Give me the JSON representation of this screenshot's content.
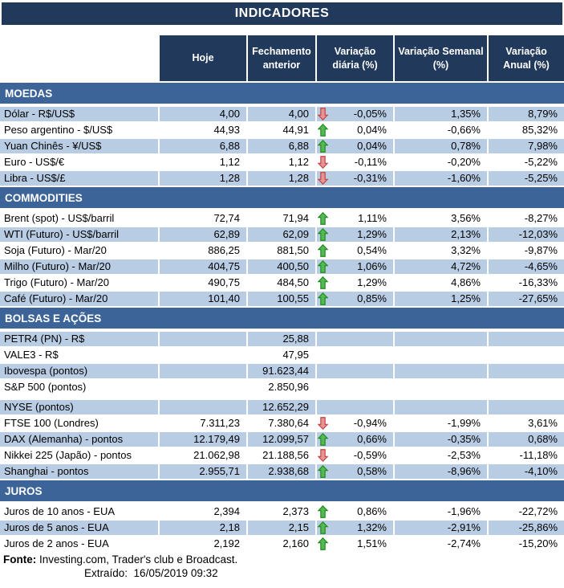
{
  "title": "INDICADORES",
  "colors": {
    "navy": "#21395B",
    "section-blue": "#3C6498",
    "row-blue": "#B8CCE4",
    "arrow-up-fill": "#55B855",
    "arrow-up-stroke": "#1E8A1E",
    "arrow-down-fill": "#E99494",
    "arrow-down-stroke": "#C04242"
  },
  "columns": [
    "Hoje",
    "Fechamento anterior",
    "Variação diária (%)",
    "Variação Semanal (%)",
    "Variação Anual (%)"
  ],
  "sections": [
    {
      "name": "MOEDAS",
      "rows": [
        {
          "label": "Dólar - R$/US$",
          "hoje": "4,00",
          "fechamento": "4,00",
          "arrow": "down",
          "var_diaria": "-0,05%",
          "var_semanal": "1,35%",
          "var_anual": "8,79%",
          "shaded": true
        },
        {
          "label": "Peso argentino - $/US$",
          "hoje": "44,93",
          "fechamento": "44,91",
          "arrow": "up",
          "var_diaria": "0,04%",
          "var_semanal": "-0,66%",
          "var_anual": "85,32%",
          "shaded": false
        },
        {
          "label": "Yuan Chinês - ¥/US$",
          "hoje": "6,88",
          "fechamento": "6,88",
          "arrow": "up",
          "var_diaria": "0,04%",
          "var_semanal": "0,78%",
          "var_anual": "7,98%",
          "shaded": true
        },
        {
          "label": "Euro - US$/€",
          "hoje": "1,12",
          "fechamento": "1,12",
          "arrow": "down",
          "var_diaria": "-0,11%",
          "var_semanal": "-0,20%",
          "var_anual": "-5,22%",
          "shaded": false
        },
        {
          "label": "Libra - US$/£",
          "hoje": "1,28",
          "fechamento": "1,28",
          "arrow": "down",
          "var_diaria": "-0,31%",
          "var_semanal": "-1,60%",
          "var_anual": "-5,25%",
          "shaded": true
        }
      ]
    },
    {
      "name": "COMMODITIES",
      "rows": [
        {
          "label": "Brent (spot) - US$/barril",
          "hoje": "72,74",
          "fechamento": "71,94",
          "arrow": "up",
          "var_diaria": "1,11%",
          "var_semanal": "3,56%",
          "var_anual": "-8,27%",
          "shaded": false
        },
        {
          "label": "WTI (Futuro) - US$/barril",
          "hoje": "62,89",
          "fechamento": "62,09",
          "arrow": "up",
          "var_diaria": "1,29%",
          "var_semanal": "2,13%",
          "var_anual": "-12,03%",
          "shaded": true
        },
        {
          "label": "Soja (Futuro) - Mar/20",
          "hoje": "886,25",
          "fechamento": "881,50",
          "arrow": "up",
          "var_diaria": "0,54%",
          "var_semanal": "3,32%",
          "var_anual": "-9,87%",
          "shaded": false
        },
        {
          "label": "Milho (Futuro) - Mar/20",
          "hoje": "404,75",
          "fechamento": "400,50",
          "arrow": "up",
          "var_diaria": "1,06%",
          "var_semanal": "4,72%",
          "var_anual": "-4,65%",
          "shaded": true
        },
        {
          "label": "Trigo (Futuro) - Mar/20",
          "hoje": "490,75",
          "fechamento": "484,50",
          "arrow": "up",
          "var_diaria": "1,29%",
          "var_semanal": "4,86%",
          "var_anual": "-16,33%",
          "shaded": false
        },
        {
          "label": "Café (Futuro) - Mar/20",
          "hoje": "101,40",
          "fechamento": "100,55",
          "arrow": "up",
          "var_diaria": "0,85%",
          "var_semanal": "1,25%",
          "var_anual": "-27,65%",
          "shaded": true
        }
      ]
    },
    {
      "name": "BOLSAS E AÇÕES",
      "rows": [
        {
          "label": "PETR4 (PN) - R$",
          "hoje": "",
          "fechamento": "25,88",
          "arrow": "",
          "var_diaria": "",
          "var_semanal": "",
          "var_anual": "",
          "shaded": true
        },
        {
          "label": "VALE3 - R$",
          "hoje": "",
          "fechamento": "47,95",
          "arrow": "",
          "var_diaria": "",
          "var_semanal": "",
          "var_anual": "",
          "shaded": false
        },
        {
          "label": "Ibovespa (pontos)",
          "hoje": "",
          "fechamento": "91.623,44",
          "arrow": "",
          "var_diaria": "",
          "var_semanal": "",
          "var_anual": "",
          "shaded": true
        },
        {
          "label": "S&P 500 (pontos)",
          "hoje": "",
          "fechamento": "2.850,96",
          "arrow": "",
          "var_diaria": "",
          "var_semanal": "",
          "var_anual": "",
          "shaded": false
        },
        {
          "label": "NYSE (pontos)",
          "hoje": "",
          "fechamento": "12.652,29",
          "arrow": "",
          "var_diaria": "",
          "var_semanal": "",
          "var_anual": "",
          "shaded": true,
          "spacer_before": true
        },
        {
          "label": "FTSE 100 (Londres)",
          "hoje": "7.311,23",
          "fechamento": "7.380,64",
          "arrow": "down",
          "var_diaria": "-0,94%",
          "var_semanal": "-1,99%",
          "var_anual": "3,61%",
          "shaded": false
        },
        {
          "label": "DAX (Alemanha) - pontos",
          "hoje": "12.179,49",
          "fechamento": "12.099,57",
          "arrow": "up",
          "var_diaria": "0,66%",
          "var_semanal": "-0,35%",
          "var_anual": "0,68%",
          "shaded": true
        },
        {
          "label": "Nikkei 225 (Japão) - pontos",
          "hoje": "21.062,98",
          "fechamento": "21.188,56",
          "arrow": "down",
          "var_diaria": "-0,59%",
          "var_semanal": "-2,53%",
          "var_anual": "-11,18%",
          "shaded": false
        },
        {
          "label": "Shanghai - pontos",
          "hoje": "2.955,71",
          "fechamento": "2.938,68",
          "arrow": "up",
          "var_diaria": "0,58%",
          "var_semanal": "-8,96%",
          "var_anual": "-4,10%",
          "shaded": true
        }
      ]
    },
    {
      "name": "JUROS",
      "rows": [
        {
          "label": "Juros de 10 anos - EUA",
          "hoje": "2,394",
          "fechamento": "2,373",
          "arrow": "up",
          "var_diaria": "0,86%",
          "var_semanal": "-1,96%",
          "var_anual": "-22,72%",
          "shaded": false
        },
        {
          "label": "Juros de 5 anos - EUA",
          "hoje": "2,18",
          "fechamento": "2,15",
          "arrow": "up",
          "var_diaria": "1,32%",
          "var_semanal": "-2,91%",
          "var_anual": "-25,86%",
          "shaded": true
        },
        {
          "label": "Juros de 2 anos - EUA",
          "hoje": "2,192",
          "fechamento": "2,160",
          "arrow": "up",
          "var_diaria": "1,51%",
          "var_semanal": "-2,74%",
          "var_anual": "-15,20%",
          "shaded": false
        }
      ]
    }
  ],
  "footer": {
    "fonte_label": "Fonte:",
    "fonte_text": "Investing.com, Trader's club e Broadcast.",
    "extraido_label": "Extraído:",
    "extraido_value": "16/05/2019 09:32"
  }
}
